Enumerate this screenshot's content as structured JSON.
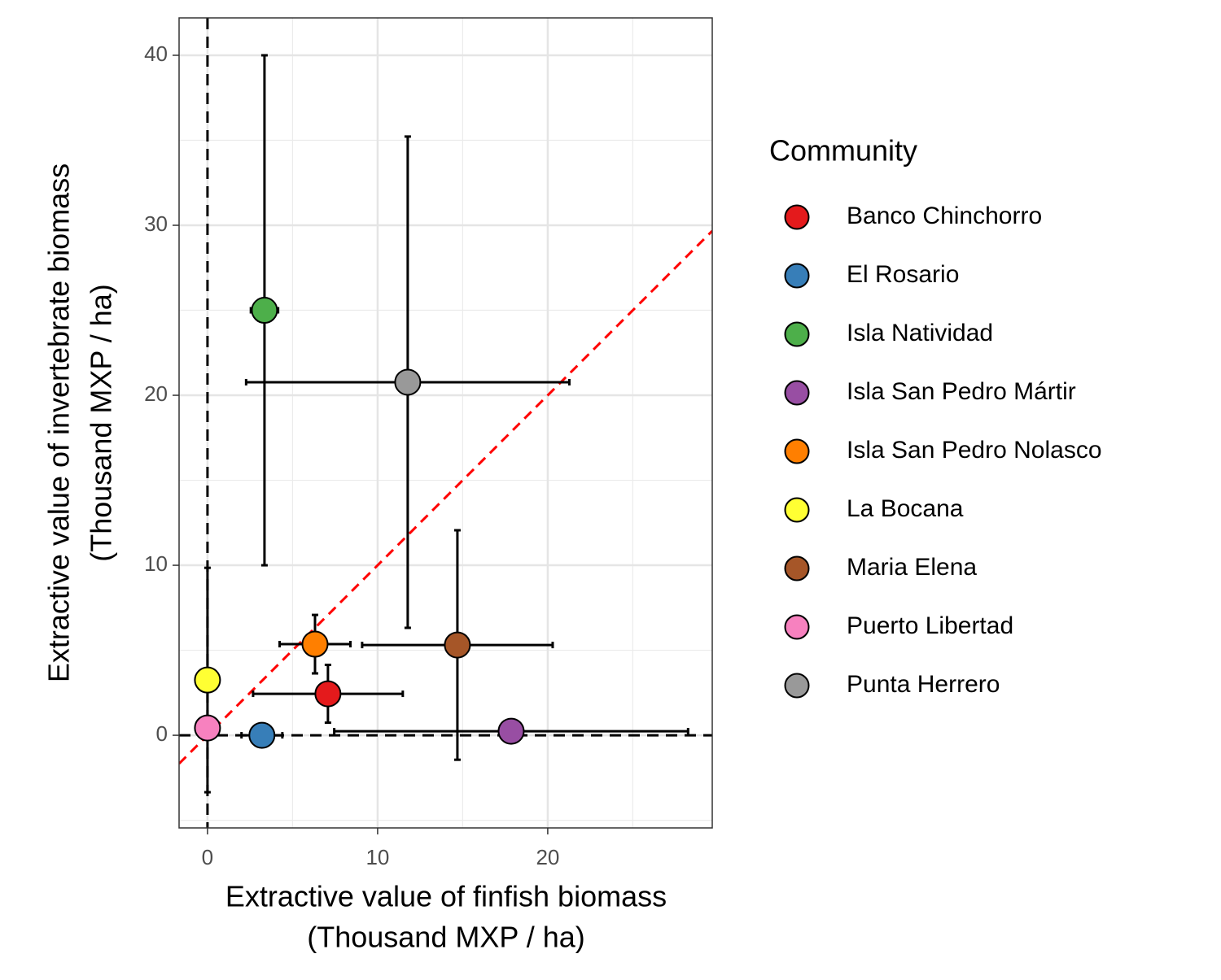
{
  "chart_data": {
    "type": "scatter",
    "x_label": [
      "Extractive value of finfish biomass",
      "(Thousand MXP / ha)"
    ],
    "y_label": [
      "Extractive value of invertebrate biomass",
      "(Thousand MXP / ha)"
    ],
    "legend_title": "Community",
    "legend_position": "right",
    "xlim": [
      -1.67,
      29.67
    ],
    "ylim": [
      -5.45,
      42.2
    ],
    "xticks": [
      0,
      10,
      20
    ],
    "yticks": [
      0,
      10,
      20,
      30,
      40
    ],
    "xminor": [
      5,
      15,
      25
    ],
    "yminor": [
      -5,
      5,
      15,
      25,
      35
    ],
    "grid": true,
    "hlines": [
      0
    ],
    "vlines": [
      0
    ],
    "abline": {
      "slope": 1,
      "intercept": 0,
      "color": "#ff0000"
    },
    "series": [
      {
        "name": "Banco Chinchorro",
        "color": "#e41a1c",
        "x": [
          7.08
        ],
        "values": [
          2.44
        ],
        "xerr": [
          4.4
        ],
        "yerr": [
          1.7
        ]
      },
      {
        "name": "El Rosario",
        "color": "#377eb8",
        "x": [
          3.2
        ],
        "values": [
          0
        ],
        "xerr": [
          1.2
        ],
        "yerr": [
          null
        ]
      },
      {
        "name": "Isla Natividad",
        "color": "#4daf4a",
        "x": [
          3.35
        ],
        "values": [
          25
        ],
        "xerr": [
          0.8
        ],
        "yerr": [
          15
        ]
      },
      {
        "name": "Isla San Pedro Mártir",
        "color": "#984ea3",
        "x": [
          17.85
        ],
        "values": [
          0.24
        ],
        "xerr": [
          10.4
        ],
        "yerr": [
          null
        ]
      },
      {
        "name": "Isla San Pedro Nolasco",
        "color": "#ff7f00",
        "x": [
          6.32
        ],
        "values": [
          5.36
        ],
        "xerr": [
          2.08
        ],
        "yerr": [
          1.72
        ]
      },
      {
        "name": "La Bocana",
        "color": "#ffff33",
        "x": [
          0
        ],
        "values": [
          3.25
        ],
        "xerr": [
          null
        ],
        "yerr": [
          6.6
        ]
      },
      {
        "name": "Maria Elena",
        "color": "#a65628",
        "x": [
          14.69
        ],
        "values": [
          5.31
        ],
        "xerr": [
          5.6
        ],
        "yerr": [
          6.75
        ]
      },
      {
        "name": "Puerto Libertad",
        "color": "#f781bf",
        "x": [
          0
        ],
        "values": [
          0.43
        ],
        "xerr": [
          null
        ],
        "yerr": [
          null
        ]
      },
      {
        "name": "Punta Herrero",
        "color": "#999999",
        "x": [
          11.77
        ],
        "values": [
          20.77
        ],
        "xerr": [
          9.5
        ],
        "yerr": [
          14.45
        ]
      }
    ]
  }
}
